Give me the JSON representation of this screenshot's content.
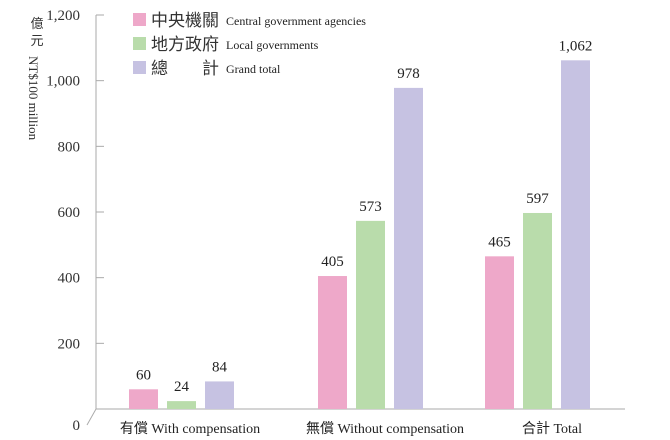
{
  "chart_data": {
    "type": "bar",
    "ylabel_zh": "億元",
    "ylabel_en": "NT$100 million",
    "ylim": [
      0,
      1200
    ],
    "yticks": [
      0,
      200,
      400,
      600,
      800,
      1000,
      1200
    ],
    "ytick_labels": [
      "0",
      "200",
      "400",
      "600",
      "800",
      "1,000",
      "1,200"
    ],
    "categories": [
      "有償  With compensation",
      "無償  Without compensation",
      "合計  Total"
    ],
    "series": [
      {
        "name_zh": "中央機關",
        "name_en": "Central government agencies",
        "color": "#eea8c9",
        "values": [
          60,
          405,
          465
        ],
        "labels": [
          "60",
          "405",
          "465"
        ]
      },
      {
        "name_zh": "地方政府",
        "name_en": "Local governments",
        "color": "#b9dcab",
        "values": [
          24,
          573,
          597
        ],
        "labels": [
          "24",
          "573",
          "597"
        ]
      },
      {
        "name_zh": "總　　計",
        "name_en": "Grand total",
        "color": "#c6c2e2",
        "values": [
          84,
          978,
          1062
        ],
        "labels": [
          "84",
          "978",
          "1,062"
        ]
      }
    ],
    "legend_position": "top-left",
    "grid": false
  }
}
